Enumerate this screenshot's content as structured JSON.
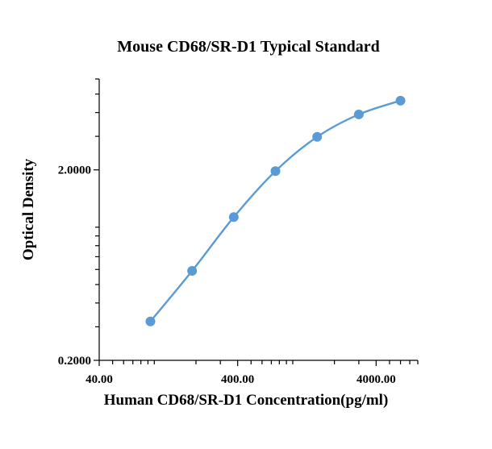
{
  "chart_data": {
    "type": "scatter",
    "title": "Mouse CD68/SR-D1 Typical Standard",
    "xlabel": "Human CD68/SR-D1 Concentration(pg/ml)",
    "ylabel": "Optical Density",
    "x_scale": "log",
    "y_scale": "log",
    "xlim": [
      40,
      8000
    ],
    "ylim": [
      0.2,
      6
    ],
    "x_ticks": [
      {
        "value": 40,
        "label": "40.00"
      },
      {
        "value": 400,
        "label": "400.00"
      },
      {
        "value": 4000,
        "label": "4000.00"
      }
    ],
    "y_ticks": [
      {
        "value": 0.2,
        "label": "0.2000"
      },
      {
        "value": 2,
        "label": "2.0000"
      }
    ],
    "grid": false,
    "series": [
      {
        "x": [
          93.75,
          187.5,
          375,
          750,
          1500,
          3000,
          6000
        ],
        "y": [
          0.32,
          0.59,
          1.13,
          1.97,
          2.98,
          3.91,
          4.62
        ]
      }
    ],
    "colors": {
      "series": "#5b9bd5",
      "axis": "#000000"
    }
  }
}
